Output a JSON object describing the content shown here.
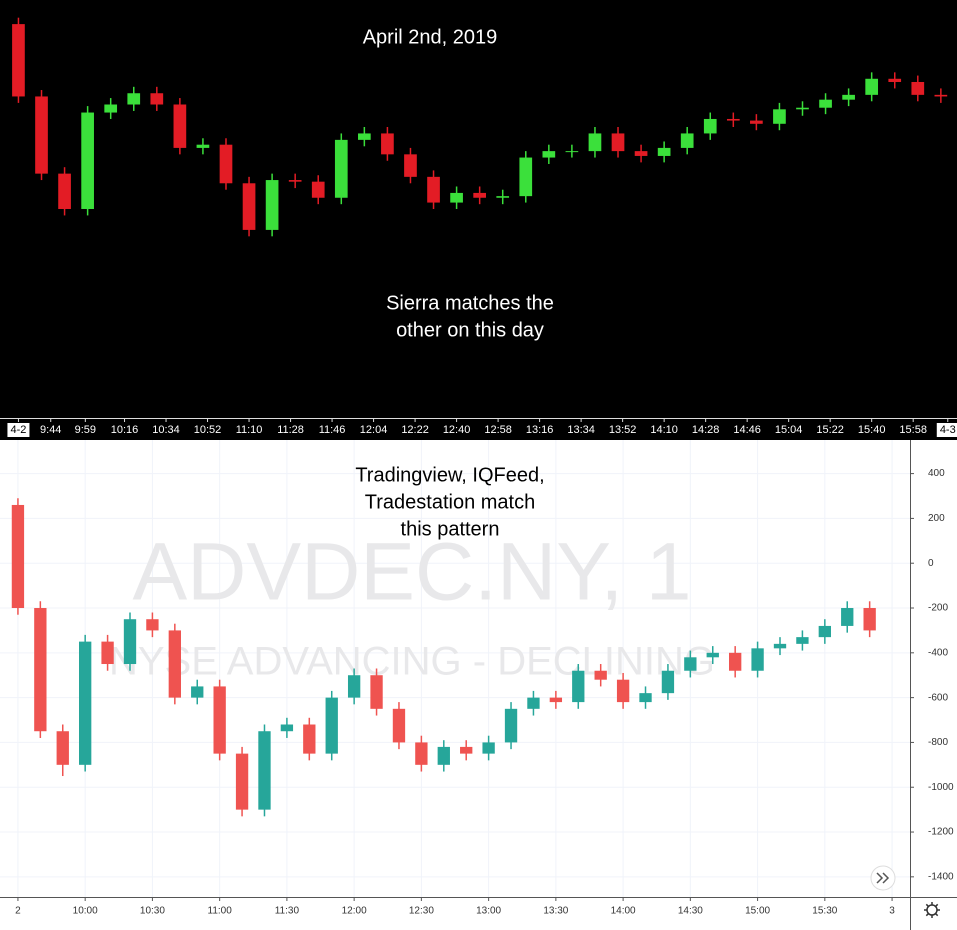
{
  "chart_data": [
    {
      "type": "candlestick",
      "annotations": [
        {
          "lines": [
            "April 2nd, 2019"
          ]
        },
        {
          "lines": [
            "Sierra matches the",
            "other on this day"
          ]
        }
      ],
      "up_color": "#3be03b",
      "down_color": "#e31c25",
      "xlim": [
        "9:22",
        "16:17"
      ],
      "ylim": [
        -2200,
        400
      ],
      "xticks": [
        {
          "value": "9:30",
          "label": "4-2"
        },
        "9:44",
        "9:59",
        "10:16",
        "10:34",
        "10:52",
        "11:10",
        "11:28",
        "11:46",
        "12:04",
        "12:22",
        "12:40",
        "12:58",
        "13:16",
        "13:34",
        "13:52",
        "14:10",
        "14:28",
        "14:46",
        "15:04",
        "15:22",
        "15:40",
        "15:58",
        {
          "value": "16:13",
          "label": "4-3"
        }
      ],
      "x": [
        "9:30",
        "9:40",
        "9:50",
        "10:00",
        "10:10",
        "10:20",
        "10:30",
        "10:40",
        "10:50",
        "11:00",
        "11:10",
        "11:20",
        "11:30",
        "11:40",
        "11:50",
        "12:00",
        "12:10",
        "12:20",
        "12:30",
        "12:40",
        "12:50",
        "13:00",
        "13:10",
        "13:20",
        "13:30",
        "13:40",
        "13:50",
        "14:00",
        "14:10",
        "14:20",
        "14:30",
        "14:40",
        "14:50",
        "15:00",
        "15:10",
        "15:20",
        "15:30",
        "15:40",
        "15:50",
        "16:00",
        "16:10"
      ],
      "open": [
        250,
        -200,
        -680,
        -900,
        -300,
        -250,
        -180,
        -250,
        -520,
        -500,
        -740,
        -1030,
        -720,
        -730,
        -830,
        -470,
        -430,
        -560,
        -700,
        -860,
        -800,
        -830,
        -820,
        -580,
        -540,
        -540,
        -430,
        -540,
        -570,
        -520,
        -430,
        -340,
        -350,
        -370,
        -280,
        -270,
        -220,
        -190,
        -90,
        -110,
        -190
      ],
      "high": [
        290,
        -160,
        -640,
        -260,
        -210,
        -140,
        -140,
        -210,
        -460,
        -460,
        -700,
        -680,
        -680,
        -690,
        -430,
        -390,
        -390,
        -520,
        -660,
        -760,
        -760,
        -780,
        -540,
        -500,
        -500,
        -390,
        -390,
        -500,
        -480,
        -390,
        -300,
        -300,
        -310,
        -240,
        -230,
        -180,
        -150,
        -50,
        -50,
        -70,
        -150
      ],
      "low": [
        -240,
        -720,
        -940,
        -940,
        -340,
        -290,
        -290,
        -560,
        -560,
        -780,
        -1070,
        -1070,
        -770,
        -870,
        -870,
        -510,
        -600,
        -740,
        -900,
        -900,
        -870,
        -870,
        -860,
        -620,
        -580,
        -580,
        -580,
        -610,
        -610,
        -560,
        -470,
        -390,
        -410,
        -410,
        -320,
        -310,
        -260,
        -230,
        -150,
        -230,
        -240
      ],
      "close": [
        -200,
        -680,
        -900,
        -300,
        -250,
        -180,
        -250,
        -520,
        -500,
        -740,
        -1030,
        -720,
        -730,
        -830,
        -470,
        -430,
        -560,
        -700,
        -860,
        -800,
        -830,
        -820,
        -580,
        -540,
        -540,
        -430,
        -540,
        -570,
        -520,
        -430,
        -340,
        -350,
        -370,
        -280,
        -270,
        -220,
        -190,
        -90,
        -110,
        -190,
        -200
      ]
    },
    {
      "type": "candlestick",
      "annotations": [
        {
          "lines": [
            "Tradingview, IQFeed,",
            "Tradestation match",
            "this pattern"
          ]
        }
      ],
      "watermark": [
        "ADVDEC.NY, 1",
        "NYSE ADVANCING - DECLINING"
      ],
      "up_color": "#26a69a",
      "down_color": "#ef5350",
      "grid": true,
      "xlim": [
        "9:22",
        "16:08"
      ],
      "ylim": [
        -1490,
        550
      ],
      "xticks": [
        {
          "value": "9:30",
          "label": "2"
        },
        "10:00",
        "10:30",
        "11:00",
        "11:30",
        "12:00",
        "12:30",
        "13:00",
        "13:30",
        "14:00",
        "14:30",
        "15:00",
        "15:30",
        {
          "value": "16:00",
          "label": "3"
        }
      ],
      "yticks": [
        400,
        200,
        0,
        -200,
        -400,
        -600,
        -800,
        -1000,
        -1200,
        -1400
      ],
      "x": [
        "9:30",
        "9:40",
        "9:50",
        "10:00",
        "10:10",
        "10:20",
        "10:30",
        "10:40",
        "10:50",
        "11:00",
        "11:10",
        "11:20",
        "11:30",
        "11:40",
        "11:50",
        "12:00",
        "12:10",
        "12:20",
        "12:30",
        "12:40",
        "12:50",
        "13:00",
        "13:10",
        "13:20",
        "13:30",
        "13:40",
        "13:50",
        "14:00",
        "14:10",
        "14:20",
        "14:30",
        "14:40",
        "14:50",
        "15:00",
        "15:10",
        "15:20",
        "15:30",
        "15:40",
        "15:50"
      ],
      "open": [
        260,
        -200,
        -750,
        -900,
        -350,
        -450,
        -250,
        -300,
        -600,
        -550,
        -850,
        -1100,
        -750,
        -720,
        -850,
        -600,
        -500,
        -650,
        -800,
        -900,
        -820,
        -850,
        -800,
        -650,
        -600,
        -620,
        -480,
        -520,
        -620,
        -580,
        -480,
        -420,
        -400,
        -480,
        -380,
        -360,
        -330,
        -280,
        -200
      ],
      "high": [
        290,
        -170,
        -720,
        -320,
        -320,
        -220,
        -220,
        -270,
        -520,
        -520,
        -820,
        -720,
        -690,
        -690,
        -570,
        -470,
        -470,
        -620,
        -770,
        -790,
        -790,
        -770,
        -620,
        -570,
        -570,
        -450,
        -450,
        -490,
        -550,
        -450,
        -390,
        -370,
        -370,
        -350,
        -330,
        -300,
        -250,
        -170,
        -170
      ],
      "low": [
        -230,
        -780,
        -950,
        -930,
        -480,
        -480,
        -330,
        -630,
        -630,
        -880,
        -1130,
        -1130,
        -780,
        -880,
        -880,
        -630,
        -680,
        -830,
        -930,
        -930,
        -880,
        -880,
        -830,
        -680,
        -650,
        -650,
        -550,
        -650,
        -650,
        -610,
        -510,
        -450,
        -510,
        -510,
        -410,
        -390,
        -360,
        -310,
        -330
      ],
      "close": [
        -200,
        -750,
        -900,
        -350,
        -450,
        -250,
        -300,
        -600,
        -550,
        -850,
        -1100,
        -750,
        -720,
        -850,
        -600,
        -500,
        -650,
        -800,
        -900,
        -820,
        -850,
        -800,
        -650,
        -600,
        -620,
        -480,
        -520,
        -620,
        -580,
        -480,
        -420,
        -400,
        -480,
        -380,
        -360,
        -330,
        -280,
        -200,
        -300
      ]
    }
  ]
}
